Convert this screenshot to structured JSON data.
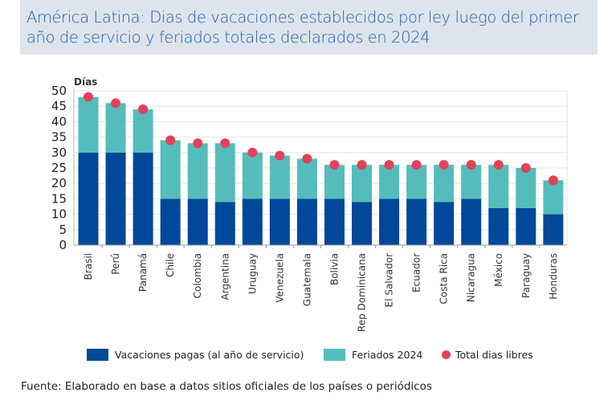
{
  "title": "América Latina: Dias de vacaciones establecidos por ley luego del primer año de servicio y feriados totales declarados en 2024",
  "source": "Fuente: Elaborado en base a datos sitios oficiales de los países o periódicos",
  "colors": {
    "vacaciones": "#004899",
    "feriados": "#55bcbc",
    "total": "#e5405a",
    "title_bg": "#dde4ec",
    "title_text": "#1f5ea8"
  },
  "chart_data": {
    "type": "bar",
    "stacked": true,
    "title": "América Latina: Dias de vacaciones establecidos por ley luego del primer año de servicio y feriados totales declarados en 2024",
    "xlabel": "",
    "ylabel": "Días",
    "ylim": [
      0,
      50
    ],
    "yticks": [
      0,
      5,
      10,
      15,
      20,
      25,
      30,
      35,
      40,
      45,
      50
    ],
    "grid": true,
    "legend_position": "bottom",
    "categories": [
      "Brasil",
      "Perú",
      "Panamá",
      "Chile",
      "Colombia",
      "Argentina",
      "Uruguay",
      "Venezuela",
      "Guatemala",
      "Bolivia",
      "Rep Dominicana",
      "El Salvador",
      "Ecuador",
      "Costa Rica",
      "Nicaragua",
      "México",
      "Paraguay",
      "Honduras"
    ],
    "series": [
      {
        "name": "Vacaciones pagas (al año de servicio)",
        "type": "bar",
        "values": [
          30,
          30,
          30,
          15,
          15,
          14,
          15,
          15,
          15,
          15,
          14,
          15,
          15,
          14,
          15,
          12,
          12,
          10
        ]
      },
      {
        "name": "Feriados 2024",
        "type": "bar",
        "values": [
          18,
          16,
          14,
          19,
          18,
          19,
          15,
          14,
          13,
          11,
          12,
          11,
          11,
          12,
          11,
          14,
          13,
          11
        ]
      },
      {
        "name": "Total dias libres",
        "type": "scatter",
        "values": [
          48,
          46,
          44,
          34,
          33,
          33,
          30,
          29,
          28,
          26,
          26,
          26,
          26,
          26,
          26,
          26,
          25,
          21
        ]
      }
    ]
  }
}
